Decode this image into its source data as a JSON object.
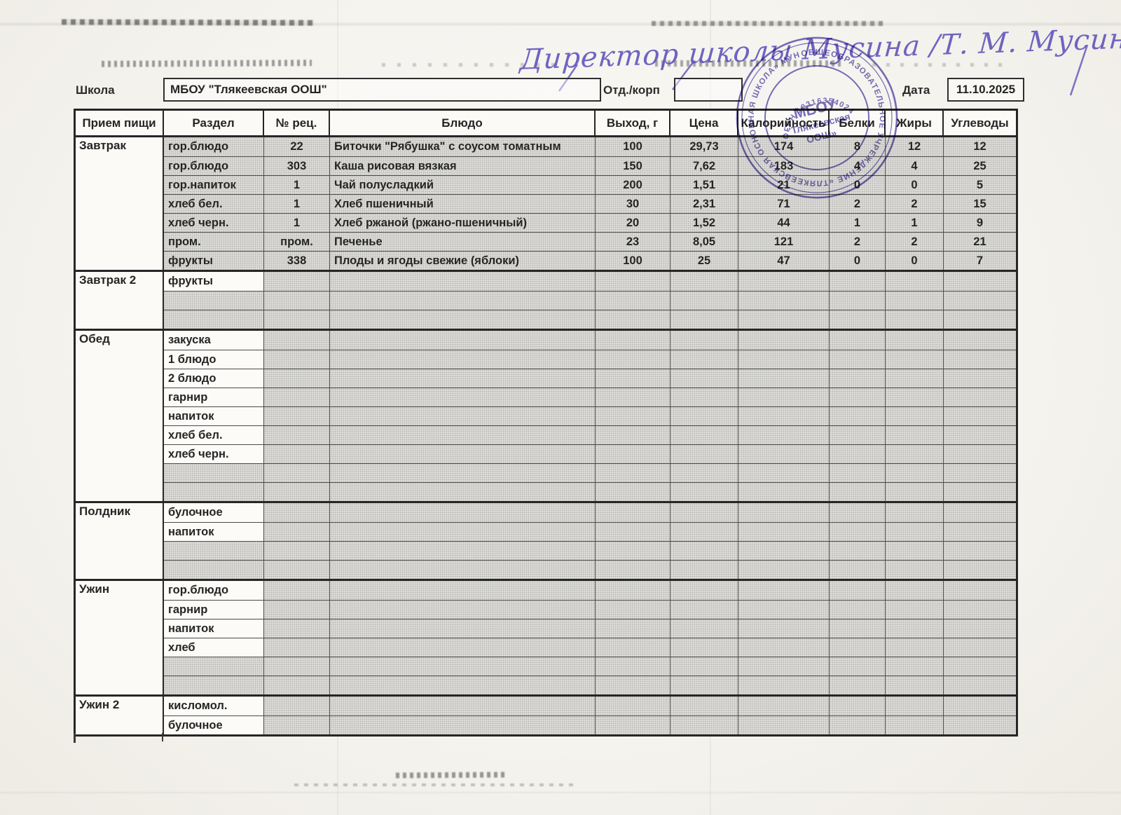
{
  "annotations": {
    "handwriting": "Директор школы Мусина /Т. М. Мусина/"
  },
  "form": {
    "school_label": "Школа",
    "school_value": "МБОУ \"Тлякеевская ООШ\"",
    "dept_label": "Отд./корп",
    "dept_value": "",
    "date_label": "Дата",
    "date_value": "11.10.2025"
  },
  "stamp": {
    "ring_text": "ОБЩЕОБРАЗОВАТЕЛЬНОЕ УЧРЕЖДЕНИЕ «ТЛЯКЕЕВСКАЯ ОСНОВНАЯ ШКОЛА» МУНИЦИПАЛЬНОГО РАЙОНА РЕСПУБЛИКИ",
    "ogrn_text": "ОГРН 1031635402477",
    "center_line1": "МБОУ",
    "center_line2": "\"Тлякеевская",
    "center_line3": "ООШ»"
  },
  "colors": {
    "ink": "#5b4fb0",
    "table_line": "#3a3a3a",
    "shaded_cell": "#dcdbd7"
  },
  "table": {
    "headers": [
      "Прием пищи",
      "Раздел",
      "№ рец.",
      "Блюдо",
      "Выход, г",
      "Цена",
      "Калорийность",
      "Белки",
      "Жиры",
      "Углеводы"
    ],
    "sections": [
      {
        "meal": "Завтрак",
        "rows": [
          {
            "type": "data",
            "razdel": "гор.блюдо",
            "num": "22",
            "dish": "Биточки \"Рябушка\" с соусом томатным",
            "out": "100",
            "price": "29,73",
            "kcal": "174",
            "protein": "8",
            "fat": "12",
            "carbs": "12"
          },
          {
            "type": "data",
            "razdel": "гор.блюдо",
            "num": "303",
            "dish": "Каша рисовая вязкая",
            "out": "150",
            "price": "7,62",
            "kcal": "183",
            "protein": "4",
            "fat": "4",
            "carbs": "25"
          },
          {
            "type": "data",
            "razdel": "гор.напиток",
            "num": "1",
            "dish": "Чай полусладкий",
            "out": "200",
            "price": "1,51",
            "kcal": "21",
            "protein": "0",
            "fat": "0",
            "carbs": "5"
          },
          {
            "type": "data",
            "razdel": "хлеб бел.",
            "num": "1",
            "dish": "Хлеб пшеничный",
            "out": "30",
            "price": "2,31",
            "kcal": "71",
            "protein": "2",
            "fat": "2",
            "carbs": "15"
          },
          {
            "type": "data",
            "razdel": "хлеб черн.",
            "num": "1",
            "dish": "Хлеб ржаной (ржано-пшеничный)",
            "out": "20",
            "price": "1,52",
            "kcal": "44",
            "protein": "1",
            "fat": "1",
            "carbs": "9"
          },
          {
            "type": "data",
            "razdel": "пром.",
            "num": "пром.",
            "dish": "Печенье",
            "out": "23",
            "price": "8,05",
            "kcal": "121",
            "protein": "2",
            "fat": "2",
            "carbs": "21"
          },
          {
            "type": "data",
            "razdel": "фрукты",
            "num": "338",
            "dish": "Плоды и ягоды свежие (яблоки)",
            "out": "100",
            "price": "25",
            "kcal": "47",
            "protein": "0",
            "fat": "0",
            "carbs": "7"
          }
        ]
      },
      {
        "meal": "Завтрак 2",
        "rows": [
          {
            "type": "label",
            "razdel": "фрукты",
            "num": "",
            "dish": "",
            "out": "",
            "price": "",
            "kcal": "",
            "protein": "",
            "fat": "",
            "carbs": ""
          },
          {
            "type": "empty",
            "razdel": "",
            "num": "",
            "dish": "",
            "out": "",
            "price": "",
            "kcal": "",
            "protein": "",
            "fat": "",
            "carbs": ""
          },
          {
            "type": "empty",
            "razdel": "",
            "num": "",
            "dish": "",
            "out": "",
            "price": "",
            "kcal": "",
            "protein": "",
            "fat": "",
            "carbs": ""
          }
        ]
      },
      {
        "meal": "Обед",
        "rows": [
          {
            "type": "label",
            "razdel": "закуска",
            "num": "",
            "dish": "",
            "out": "",
            "price": "",
            "kcal": "",
            "protein": "",
            "fat": "",
            "carbs": ""
          },
          {
            "type": "label",
            "razdel": "1 блюдо",
            "num": "",
            "dish": "",
            "out": "",
            "price": "",
            "kcal": "",
            "protein": "",
            "fat": "",
            "carbs": ""
          },
          {
            "type": "label",
            "razdel": "2 блюдо",
            "num": "",
            "dish": "",
            "out": "",
            "price": "",
            "kcal": "",
            "protein": "",
            "fat": "",
            "carbs": ""
          },
          {
            "type": "label",
            "razdel": "гарнир",
            "num": "",
            "dish": "",
            "out": "",
            "price": "",
            "kcal": "",
            "protein": "",
            "fat": "",
            "carbs": ""
          },
          {
            "type": "label",
            "razdel": "напиток",
            "num": "",
            "dish": "",
            "out": "",
            "price": "",
            "kcal": "",
            "protein": "",
            "fat": "",
            "carbs": ""
          },
          {
            "type": "label",
            "razdel": "хлеб бел.",
            "num": "",
            "dish": "",
            "out": "",
            "price": "",
            "kcal": "",
            "protein": "",
            "fat": "",
            "carbs": ""
          },
          {
            "type": "label",
            "razdel": "хлеб черн.",
            "num": "",
            "dish": "",
            "out": "",
            "price": "",
            "kcal": "",
            "protein": "",
            "fat": "",
            "carbs": ""
          },
          {
            "type": "empty",
            "razdel": "",
            "num": "",
            "dish": "",
            "out": "",
            "price": "",
            "kcal": "",
            "protein": "",
            "fat": "",
            "carbs": ""
          },
          {
            "type": "empty",
            "razdel": "",
            "num": "",
            "dish": "",
            "out": "",
            "price": "",
            "kcal": "",
            "protein": "",
            "fat": "",
            "carbs": ""
          }
        ]
      },
      {
        "meal": "Полдник",
        "rows": [
          {
            "type": "label",
            "razdel": "булочное",
            "num": "",
            "dish": "",
            "out": "",
            "price": "",
            "kcal": "",
            "protein": "",
            "fat": "",
            "carbs": ""
          },
          {
            "type": "label",
            "razdel": "напиток",
            "num": "",
            "dish": "",
            "out": "",
            "price": "",
            "kcal": "",
            "protein": "",
            "fat": "",
            "carbs": ""
          },
          {
            "type": "empty",
            "razdel": "",
            "num": "",
            "dish": "",
            "out": "",
            "price": "",
            "kcal": "",
            "protein": "",
            "fat": "",
            "carbs": ""
          },
          {
            "type": "empty",
            "razdel": "",
            "num": "",
            "dish": "",
            "out": "",
            "price": "",
            "kcal": "",
            "protein": "",
            "fat": "",
            "carbs": ""
          }
        ]
      },
      {
        "meal": "Ужин",
        "rows": [
          {
            "type": "label",
            "razdel": "гор.блюдо",
            "num": "",
            "dish": "",
            "out": "",
            "price": "",
            "kcal": "",
            "protein": "",
            "fat": "",
            "carbs": ""
          },
          {
            "type": "label",
            "razdel": "гарнир",
            "num": "",
            "dish": "",
            "out": "",
            "price": "",
            "kcal": "",
            "protein": "",
            "fat": "",
            "carbs": ""
          },
          {
            "type": "label",
            "razdel": "напиток",
            "num": "",
            "dish": "",
            "out": "",
            "price": "",
            "kcal": "",
            "protein": "",
            "fat": "",
            "carbs": ""
          },
          {
            "type": "label",
            "razdel": "хлеб",
            "num": "",
            "dish": "",
            "out": "",
            "price": "",
            "kcal": "",
            "protein": "",
            "fat": "",
            "carbs": ""
          },
          {
            "type": "empty",
            "razdel": "",
            "num": "",
            "dish": "",
            "out": "",
            "price": "",
            "kcal": "",
            "protein": "",
            "fat": "",
            "carbs": ""
          },
          {
            "type": "empty",
            "razdel": "",
            "num": "",
            "dish": "",
            "out": "",
            "price": "",
            "kcal": "",
            "protein": "",
            "fat": "",
            "carbs": ""
          }
        ]
      },
      {
        "meal": "Ужин 2",
        "rows": [
          {
            "type": "label",
            "razdel": "кисломол.",
            "num": "",
            "dish": "",
            "out": "",
            "price": "",
            "kcal": "",
            "protein": "",
            "fat": "",
            "carbs": ""
          },
          {
            "type": "label",
            "razdel": "булочное",
            "num": "",
            "dish": "",
            "out": "",
            "price": "",
            "kcal": "",
            "protein": "",
            "fat": "",
            "carbs": ""
          }
        ]
      }
    ]
  }
}
